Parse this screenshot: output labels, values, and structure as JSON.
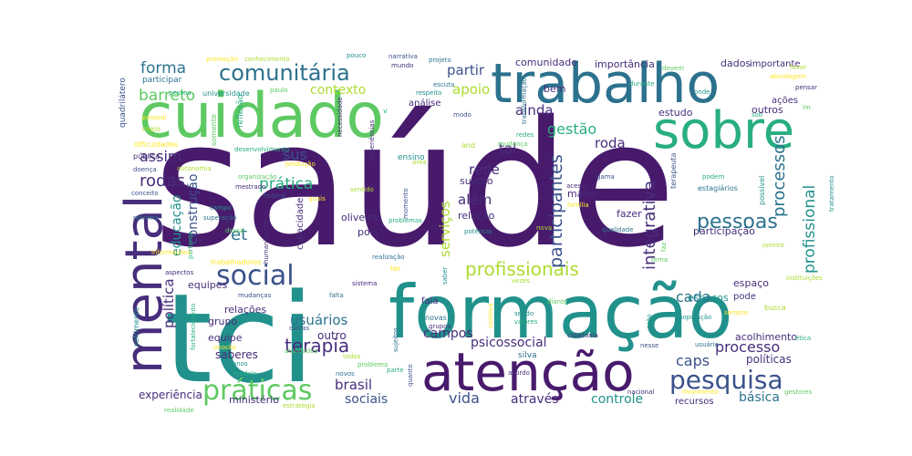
{
  "palette": {
    "dark_purple": "#481a6c",
    "purple": "#472d7b",
    "indigo": "#3b528b",
    "blue": "#2c728e",
    "teal": "#21918c",
    "sea_green": "#28ae80",
    "green": "#5ec962",
    "lime": "#addc30",
    "yellow": "#fde725"
  },
  "words": [
    {
      "text": "saúde"
    },
    {
      "text": "tci"
    },
    {
      "text": "formação"
    },
    {
      "text": "cuidado"
    },
    {
      "text": "trabalho"
    },
    {
      "text": "atenção"
    },
    {
      "text": "sobre"
    },
    {
      "text": "mental"
    },
    {
      "text": "social"
    },
    {
      "text": "comunitária"
    },
    {
      "text": "práticas"
    },
    {
      "text": "pesquisa"
    },
    {
      "text": "profissionais"
    },
    {
      "text": "participantes"
    },
    {
      "text": "integrativa"
    },
    {
      "text": "processos"
    },
    {
      "text": "profissional"
    },
    {
      "text": "pessoas"
    },
    {
      "text": "terapia"
    },
    {
      "text": "forma"
    },
    {
      "text": "barreto"
    },
    {
      "text": "assim"
    },
    {
      "text": "rodas"
    },
    {
      "text": "sus"
    },
    {
      "text": "et"
    },
    {
      "text": "prática"
    },
    {
      "text": "construção"
    },
    {
      "text": "educação"
    },
    {
      "text": "política"
    },
    {
      "text": "partir"
    },
    {
      "text": "apoio"
    },
    {
      "text": "contexto"
    },
    {
      "text": "gestão"
    },
    {
      "text": "ainda"
    },
    {
      "text": "roda"
    },
    {
      "text": "rede"
    },
    {
      "text": "tal"
    },
    {
      "text": "além"
    },
    {
      "text": "serviços"
    },
    {
      "text": "cada"
    },
    {
      "text": "caps"
    },
    {
      "text": "processo"
    },
    {
      "text": "psicossocial"
    },
    {
      "text": "usuários"
    },
    {
      "text": "campos"
    },
    {
      "text": "brasil"
    },
    {
      "text": "sociais"
    },
    {
      "text": "vida"
    },
    {
      "text": "através"
    },
    {
      "text": "controle"
    },
    {
      "text": "básica"
    },
    {
      "text": "experiência"
    },
    {
      "text": "ministério"
    },
    {
      "text": "saberes"
    },
    {
      "text": "equipe"
    },
    {
      "text": "grupo"
    },
    {
      "text": "relações"
    },
    {
      "text": "equipes"
    },
    {
      "text": "outro"
    },
    {
      "text": "acolhimento"
    },
    {
      "text": "políticas"
    },
    {
      "text": "espaços"
    },
    {
      "text": "espaço"
    },
    {
      "text": "pode"
    },
    {
      "text": "participação"
    },
    {
      "text": "fazer"
    },
    {
      "text": "maior"
    },
    {
      "text": "relação"
    },
    {
      "text": "sujeito"
    },
    {
      "text": "pois"
    },
    {
      "text": "capacidade"
    },
    {
      "text": "oliveira"
    },
    {
      "text": "comunidade"
    },
    {
      "text": "importância"
    },
    {
      "text": "dados"
    },
    {
      "text": "importante"
    },
    {
      "text": "estudo"
    },
    {
      "text": "outros"
    },
    {
      "text": "bem"
    },
    {
      "text": "análise"
    },
    {
      "text": "ações"
    },
    {
      "text": "quadrilátero"
    },
    {
      "text": "participar"
    },
    {
      "text": "universidade"
    },
    {
      "text": "reflexão"
    },
    {
      "text": "somente"
    },
    {
      "text": "meio"
    },
    {
      "text": "dificuldades"
    },
    {
      "text": "pública"
    },
    {
      "text": "doença"
    },
    {
      "text": "reforma"
    },
    {
      "text": "sofrimento"
    },
    {
      "text": "fortalecimento"
    },
    {
      "text": "atividades"
    },
    {
      "text": "todos"
    },
    {
      "text": "trabalhadores"
    },
    {
      "text": "sistema"
    },
    {
      "text": "fala"
    },
    {
      "text": "novas"
    },
    {
      "text": "sendo"
    },
    {
      "text": "valores"
    },
    {
      "text": "diante"
    },
    {
      "text": "busca"
    },
    {
      "text": "sempre"
    },
    {
      "text": "nacional"
    },
    {
      "text": "recursos"
    },
    {
      "text": "silva"
    },
    {
      "text": "ensino"
    },
    {
      "text": "pessoa"
    },
    {
      "text": "paulo"
    },
    {
      "text": "conhecimento"
    },
    {
      "text": "promoção"
    },
    {
      "text": "mundo"
    },
    {
      "text": "narrativa"
    },
    {
      "text": "projeto"
    },
    {
      "text": "pouco"
    },
    {
      "text": "durante"
    },
    {
      "text": "devem"
    },
    {
      "text": "favor"
    },
    {
      "text": "abordagem"
    },
    {
      "text": "pensar"
    },
    {
      "text": "terapeuta"
    },
    {
      "text": "estagiários"
    },
    {
      "text": "possível"
    },
    {
      "text": "podem"
    },
    {
      "text": "tema"
    },
    {
      "text": "área"
    },
    {
      "text": "produção"
    },
    {
      "text": "mestrado"
    },
    {
      "text": "federal"
    },
    {
      "text": "superação"
    },
    {
      "text": "campo"
    },
    {
      "text": "portanto"
    },
    {
      "text": "dessa"
    },
    {
      "text": "autonomia"
    },
    {
      "text": "pessoal"
    },
    {
      "text": "necessidade"
    },
    {
      "text": "modo"
    },
    {
      "text": "escuta"
    },
    {
      "text": "respeito"
    },
    {
      "text": "redes"
    },
    {
      "text": "mudança"
    },
    {
      "text": "nova"
    },
    {
      "text": "família"
    },
    {
      "text": "acesso"
    },
    {
      "text": "gama"
    },
    {
      "text": "qualidade"
    },
    {
      "text": "potência"
    },
    {
      "text": "problemas"
    },
    {
      "text": "faz"
    },
    {
      "text": "janeiro"
    },
    {
      "text": "informações"
    },
    {
      "text": "aspectos"
    },
    {
      "text": "mudanças"
    },
    {
      "text": "realização"
    },
    {
      "text": "saber"
    },
    {
      "text": "parte"
    },
    {
      "text": "problema"
    },
    {
      "text": "vezes"
    },
    {
      "text": "coletiva"
    },
    {
      "text": "cidadania"
    },
    {
      "text": "nesse"
    },
    {
      "text": "usuário"
    },
    {
      "text": "população"
    },
    {
      "text": "ética"
    },
    {
      "text": "gestores"
    },
    {
      "text": "instituições"
    },
    {
      "text": "movimento"
    },
    {
      "text": "acordo"
    },
    {
      "text": "quanto"
    },
    {
      "text": "novos"
    },
    {
      "text": "anos"
    },
    {
      "text": "modelo"
    },
    {
      "text": "realidade"
    },
    {
      "text": "estratégia"
    },
    {
      "text": "onocko"
    },
    {
      "text": "grupos"
    },
    {
      "text": "outras"
    },
    {
      "text": "sujeitos"
    },
    {
      "text": "tratamento"
    },
    {
      "text": "desenvolvimento"
    },
    {
      "text": "organização"
    },
    {
      "text": "sentido"
    },
    {
      "text": "quais"
    },
    {
      "text": "experiências"
    },
    {
      "text": "momento"
    },
    {
      "text": "transformação"
    },
    {
      "text": "onde"
    },
    {
      "text": "sob"
    },
    {
      "text": "im"
    },
    {
      "text": "and"
    },
    {
      "text": "ter"
    },
    {
      "text": "humanização"
    },
    {
      "text": "conceito"
    },
    {
      "text": "falta"
    },
    {
      "text": "ação"
    },
    {
      "text": "v"
    }
  ]
}
